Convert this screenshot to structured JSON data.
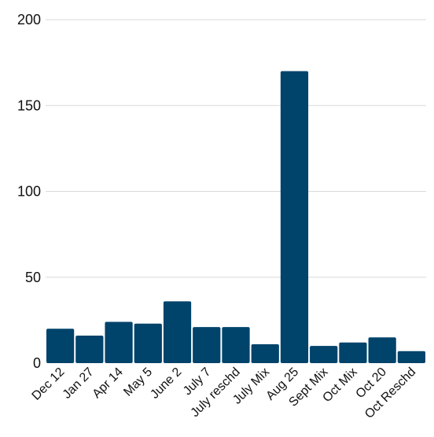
{
  "chart_data": {
    "type": "bar",
    "title": "",
    "xlabel": "",
    "ylabel": "",
    "ylim": [
      0,
      200
    ],
    "yticks": [
      0,
      50,
      100,
      150,
      200
    ],
    "grid": true,
    "categories": [
      "Dec 12",
      "Jan 27",
      "Apr 14",
      "May 5",
      "June 2",
      "July 7",
      "July reschd",
      "July Mix",
      "Aug 25",
      "Sept Mix",
      "Oct Mix",
      "Oct 20",
      "Oct Reschd"
    ],
    "values": [
      20,
      16,
      24,
      23,
      36,
      21,
      21,
      11,
      170,
      10,
      12,
      15,
      7
    ],
    "bar_color": "#00436b"
  }
}
